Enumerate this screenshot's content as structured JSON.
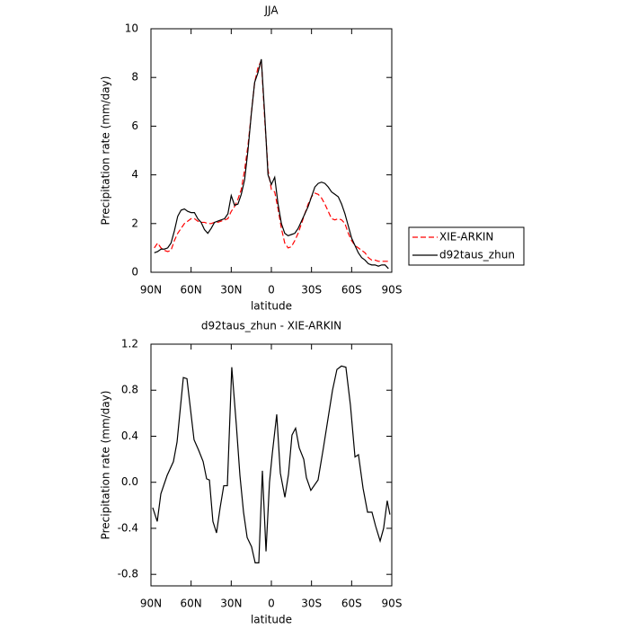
{
  "chart_data": [
    {
      "type": "line",
      "title": "JJA",
      "xlabel": "latitude",
      "ylabel": "Precipitation rate (mm/day)",
      "x": [
        87.5,
        85,
        82.5,
        80,
        77.5,
        75,
        72.5,
        70,
        67.5,
        65,
        62.5,
        60,
        57.5,
        55,
        52.5,
        50,
        47.5,
        45,
        42.5,
        40,
        37.5,
        35,
        32.5,
        30,
        27.5,
        25,
        22.5,
        20,
        17.5,
        15,
        12.5,
        10,
        7.5,
        5,
        2.5,
        0,
        -2.5,
        -5,
        -7.5,
        -10,
        -12.5,
        -15,
        -17.5,
        -20,
        -22.5,
        -25,
        -27.5,
        -30,
        -32.5,
        -35,
        -37.5,
        -40,
        -42.5,
        -45,
        -47.5,
        -50,
        -52.5,
        -55,
        -57.5,
        -60,
        -62.5,
        -65,
        -67.5,
        -70,
        -72.5,
        -75,
        -77.5,
        -80,
        -82.5,
        -85,
        -87.5
      ],
      "series": [
        {
          "name": "XIE-ARKIN",
          "color": "#ff0000",
          "linestyle": "dashed",
          "values": [
            1.0,
            1.2,
            1.0,
            0.9,
            0.85,
            0.9,
            1.3,
            1.6,
            1.8,
            2.0,
            2.1,
            2.2,
            2.2,
            2.1,
            2.05,
            2.05,
            2.0,
            2.0,
            2.05,
            2.05,
            2.1,
            2.15,
            2.2,
            2.5,
            2.7,
            3.0,
            3.4,
            4.2,
            5.2,
            6.5,
            7.8,
            8.4,
            8.7,
            6.3,
            4.2,
            3.4,
            3.3,
            2.6,
            1.8,
            1.2,
            1.0,
            1.05,
            1.3,
            1.6,
            2.0,
            2.4,
            2.8,
            3.1,
            3.25,
            3.2,
            3.05,
            2.8,
            2.5,
            2.2,
            2.15,
            2.2,
            2.15,
            2.0,
            1.6,
            1.3,
            1.1,
            1.0,
            0.9,
            0.8,
            0.6,
            0.5,
            0.5,
            0.45,
            0.45,
            0.45,
            0.45
          ]
        },
        {
          "name": "d92taus_zhun",
          "color": "#000000",
          "linestyle": "solid",
          "values": [
            0.8,
            0.85,
            0.95,
            0.95,
            1.0,
            1.2,
            1.7,
            2.3,
            2.55,
            2.6,
            2.5,
            2.45,
            2.45,
            2.2,
            2.05,
            1.75,
            1.6,
            1.8,
            2.05,
            2.1,
            2.15,
            2.2,
            2.4,
            3.15,
            2.75,
            2.8,
            3.2,
            3.8,
            5.0,
            6.5,
            7.8,
            8.2,
            8.75,
            6.5,
            4.0,
            3.6,
            3.9,
            2.8,
            2.0,
            1.6,
            1.5,
            1.55,
            1.6,
            1.8,
            2.1,
            2.4,
            2.7,
            3.1,
            3.5,
            3.65,
            3.7,
            3.65,
            3.5,
            3.3,
            3.2,
            3.1,
            2.8,
            2.4,
            1.9,
            1.4,
            1.1,
            0.8,
            0.6,
            0.5,
            0.35,
            0.3,
            0.3,
            0.25,
            0.3,
            0.3,
            0.15
          ]
        }
      ],
      "xlim": [
        90,
        -90
      ],
      "xticks": [
        {
          "value": 90,
          "label": "90N"
        },
        {
          "value": 60,
          "label": "60N"
        },
        {
          "value": 30,
          "label": "30N"
        },
        0,
        {
          "value": -30,
          "label": "30S"
        },
        {
          "value": -60,
          "label": "60S"
        },
        {
          "value": -90,
          "label": "90S"
        }
      ],
      "ylim": [
        0,
        10
      ],
      "yticks": [
        0,
        2,
        4,
        6,
        8,
        10
      ],
      "legend": "right"
    },
    {
      "type": "line",
      "title": "d92taus_zhun - XIE-ARKIN",
      "xlabel": "latitude",
      "ylabel": "Precipitation rate (mm/day)",
      "x": [
        88.7,
        85.3,
        82.6,
        77.9,
        73.2,
        70.5,
        65.8,
        63.1,
        57.8,
        54.4,
        51.0,
        48.4,
        46.3,
        43.7,
        41.0,
        38.3,
        35.6,
        32.9,
        29.6,
        26.2,
        23.5,
        20.8,
        18.1,
        14.8,
        12.1,
        9.4,
        6.7,
        4.0,
        1.4,
        -0.7,
        -4.0,
        -6.7,
        -10.1,
        -12.8,
        -15.4,
        -18.1,
        -20.8,
        -24.2,
        -26.2,
        -29.5,
        -34.9,
        -38.9,
        -42.3,
        -45.7,
        -49.0,
        -52.4,
        -55.7,
        -59.1,
        -62.5,
        -65.1,
        -68.5,
        -71.9,
        -75.2,
        -77.9,
        -81.3,
        -83.9,
        -86.6,
        -88.6
      ],
      "color": "#000000",
      "values": [
        -0.22,
        -0.34,
        -0.1,
        0.06,
        0.18,
        0.35,
        0.91,
        0.9,
        0.37,
        0.28,
        0.18,
        0.03,
        0.02,
        -0.34,
        -0.44,
        -0.22,
        -0.03,
        -0.03,
        1.0,
        0.5,
        0.06,
        -0.26,
        -0.48,
        -0.56,
        -0.7,
        -0.7,
        0.1,
        -0.6,
        0.0,
        0.25,
        0.59,
        0.08,
        -0.13,
        0.07,
        0.41,
        0.47,
        0.3,
        0.2,
        0.04,
        -0.07,
        0.02,
        0.3,
        0.55,
        0.8,
        0.98,
        1.01,
        1.0,
        0.67,
        0.22,
        0.24,
        -0.05,
        -0.26,
        -0.26,
        -0.38,
        -0.51,
        -0.4,
        -0.16,
        -0.28
      ],
      "xlim": [
        90,
        -90
      ],
      "xticks": [
        {
          "value": 90,
          "label": "90N"
        },
        {
          "value": 60,
          "label": "60N"
        },
        {
          "value": 30,
          "label": "30N"
        },
        0,
        {
          "value": -30,
          "label": "30S"
        },
        {
          "value": -60,
          "label": "60S"
        },
        {
          "value": -90,
          "label": "90S"
        }
      ],
      "ylim": [
        -0.9,
        1.2
      ],
      "yticks": [
        -0.8,
        -0.4,
        {
          "value": 0,
          "label": "0.0"
        },
        0.4,
        0.8,
        1.2
      ]
    }
  ]
}
